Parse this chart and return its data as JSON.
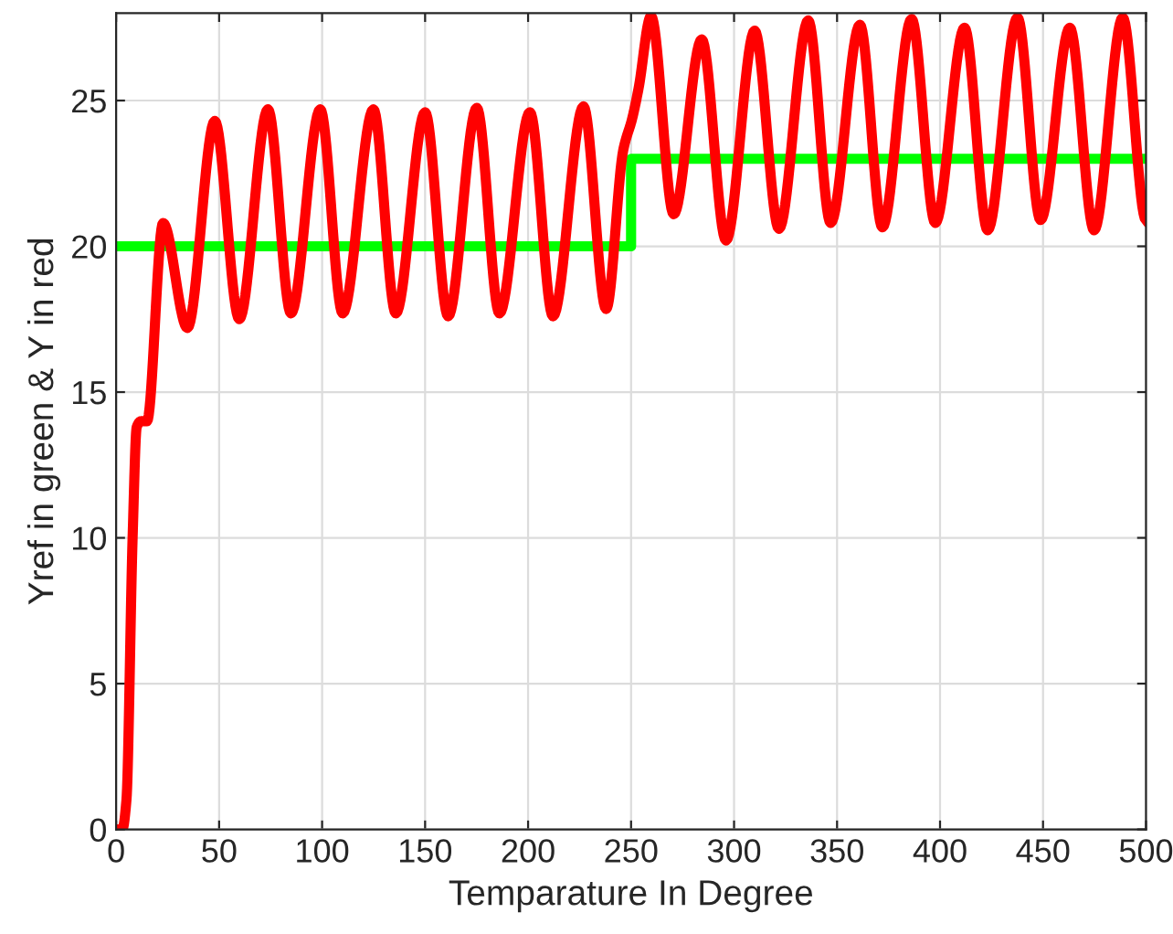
{
  "chart_data": {
    "type": "line",
    "xlabel": "Temparature In Degree",
    "ylabel": "Yref in green & Y in red",
    "xlim": [
      0,
      500
    ],
    "ylim": [
      0,
      28
    ],
    "xticks": [
      0,
      50,
      100,
      150,
      200,
      250,
      300,
      350,
      400,
      450,
      500
    ],
    "yticks": [
      0,
      5,
      10,
      15,
      20,
      25
    ],
    "grid": true,
    "marker": "none",
    "line_style": "solid",
    "series": [
      {
        "color": "#00ff00",
        "x": [
          0,
          250,
          250,
          500
        ],
        "values": [
          20,
          20,
          23,
          23
        ]
      },
      {
        "color": "#ff0000",
        "x": [
          0,
          3,
          5,
          8,
          10,
          12,
          15,
          22.8,
          34.6,
          47.9,
          59.8,
          73.7,
          84.9,
          99.1,
          110,
          124.9,
          135.8,
          150,
          161.2,
          175.1,
          186.1,
          200.9,
          212.1,
          226.9,
          237.9,
          246.2,
          250.6,
          253.6,
          259.7,
          270.7,
          284.3,
          296.1,
          310,
          321.8,
          336,
          346.9,
          361.1,
          372,
          386.2,
          397.7,
          411.9,
          423.1,
          437.6,
          448.8,
          463,
          474.8,
          488.7,
          500
        ],
        "values": [
          0,
          0,
          1,
          10,
          13.8,
          14,
          14,
          20.8,
          17.2,
          24.3,
          17.5,
          24.7,
          17.7,
          24.7,
          17.7,
          24.7,
          17.7,
          24.6,
          17.6,
          24.75,
          17.7,
          24.6,
          17.6,
          24.8,
          17.85,
          23.3,
          24.4,
          25.4,
          27.9,
          21.1,
          27.1,
          20.2,
          27.4,
          20.6,
          27.75,
          20.8,
          27.6,
          20.65,
          27.8,
          20.8,
          27.5,
          20.55,
          27.85,
          20.9,
          27.5,
          20.55,
          27.85,
          20.9
        ]
      }
    ]
  }
}
